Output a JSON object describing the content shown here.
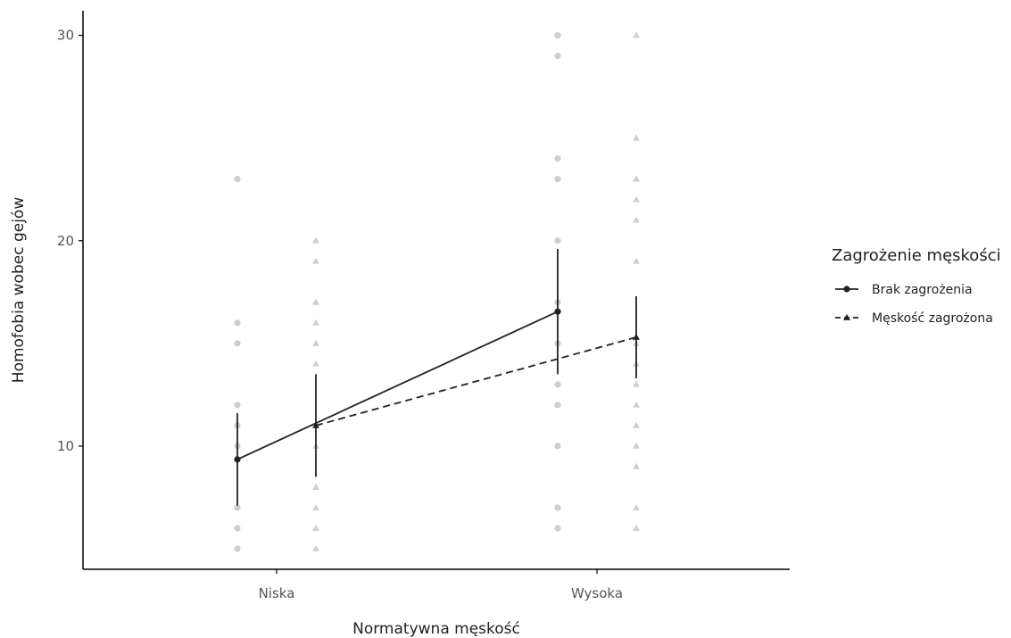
{
  "chart_data": {
    "type": "line",
    "title": "",
    "xlabel": "Normatywna męskość",
    "ylabel": "Homofobia wobec gejów",
    "categories": [
      "Niska",
      "Wysoka"
    ],
    "ylim": [
      4,
      31.2
    ],
    "yticks": [
      10,
      20,
      30
    ],
    "grid": false,
    "legend": {
      "title": "Zagrożenie męskości",
      "placement": "right"
    },
    "series": [
      {
        "name": "Brak zagrożenia",
        "marker": "circle",
        "line_style": "solid",
        "means": [
          9.35,
          16.55
        ],
        "ci_low": [
          7.1,
          13.5
        ],
        "ci_high": [
          11.6,
          19.6
        ],
        "raw_points": [
          [
            23,
            16,
            15,
            12,
            11,
            10,
            7,
            6,
            5
          ],
          [
            30,
            29,
            24,
            23,
            20,
            17,
            15,
            13,
            12,
            10,
            7,
            6
          ]
        ]
      },
      {
        "name": "Męskość zagrożona",
        "marker": "triangle",
        "line_style": "dashed",
        "means": [
          11.0,
          15.3
        ],
        "ci_low": [
          8.5,
          13.3
        ],
        "ci_high": [
          13.5,
          17.3
        ],
        "raw_points": [
          [
            20,
            19,
            17,
            16,
            15,
            14,
            11,
            10,
            8,
            7,
            6,
            5
          ],
          [
            30,
            25,
            23,
            22,
            21,
            19,
            15,
            14,
            13,
            12,
            11,
            10,
            9,
            7,
            6
          ]
        ]
      }
    ],
    "colors": {
      "line": "#222222",
      "raw_points": "#bdbdbd",
      "axis": "#000000"
    }
  }
}
